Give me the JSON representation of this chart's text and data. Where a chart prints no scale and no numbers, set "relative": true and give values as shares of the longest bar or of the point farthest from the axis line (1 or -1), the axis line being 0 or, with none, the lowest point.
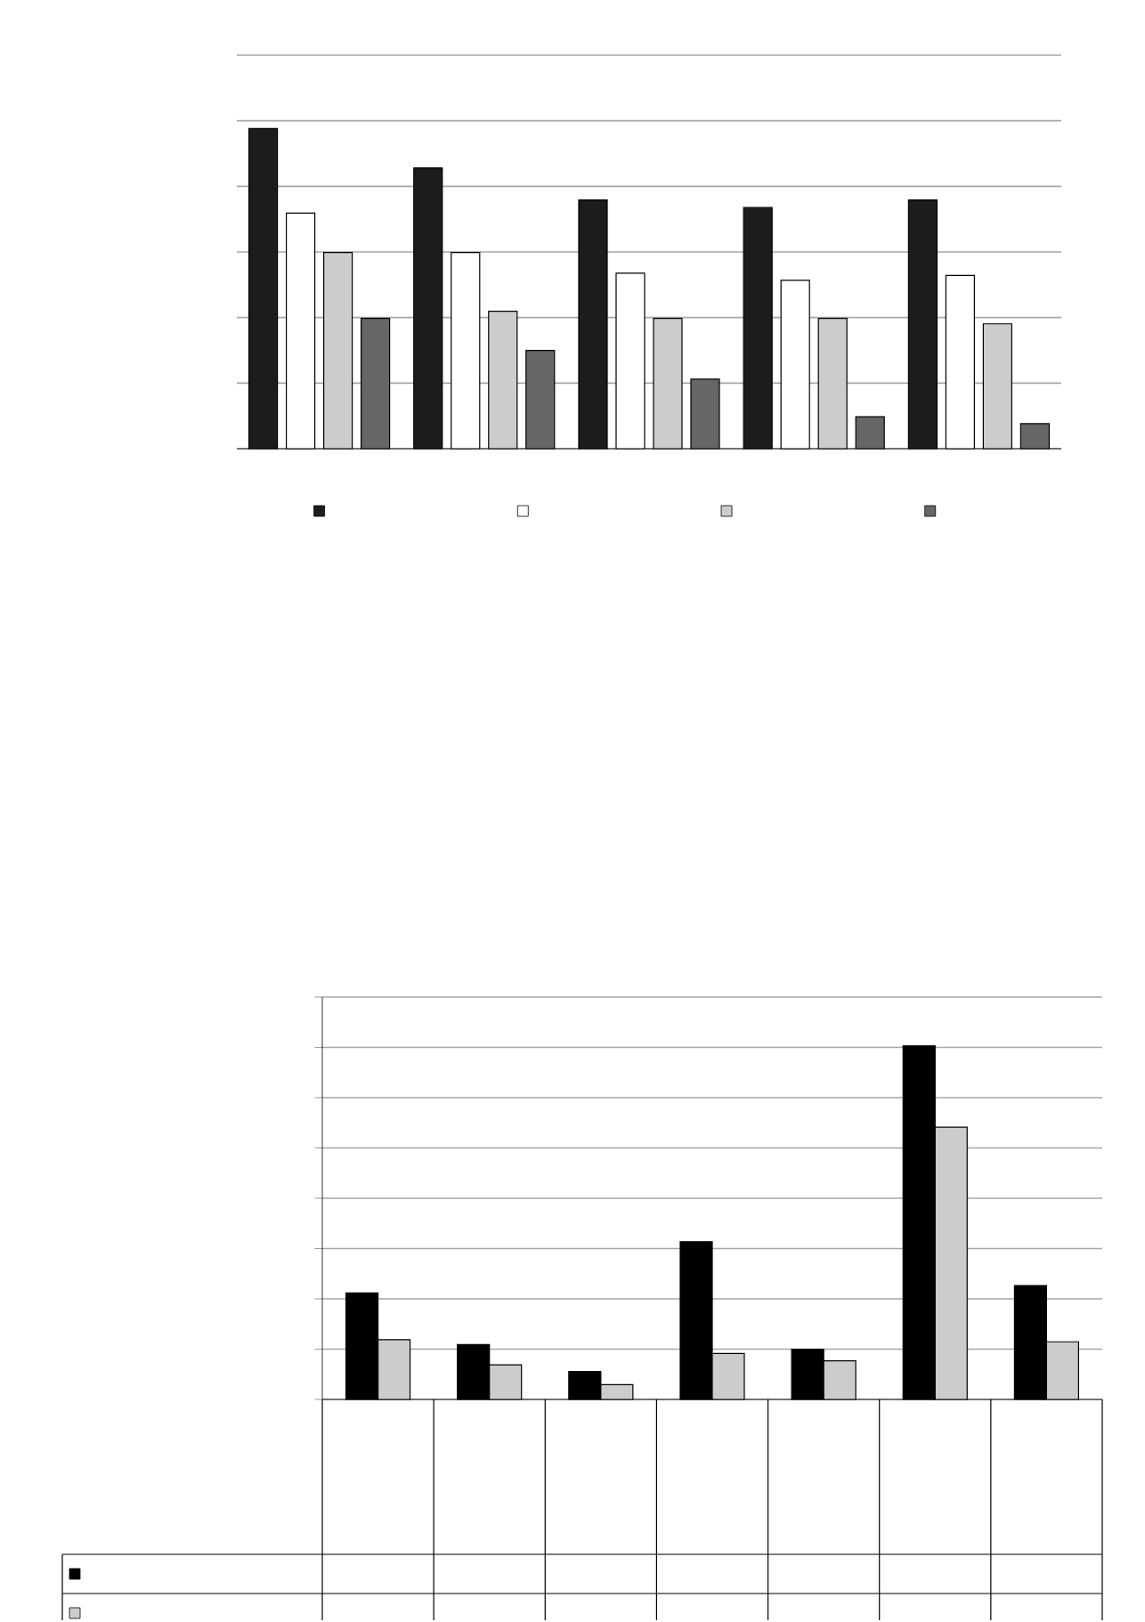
{
  "chart_data": [
    {
      "type": "bar",
      "relative": true,
      "grid": "y",
      "categories": [
        null,
        null,
        null,
        null,
        null
      ],
      "series": [
        {
          "color": "#1c1c1c",
          "values": [
            1,
            0.877,
            0.777,
            0.753,
            0.777
          ]
        },
        {
          "color": "#ffffff",
          "values": [
            0.736,
            0.613,
            0.548,
            0.526,
            0.541
          ]
        },
        {
          "color": "#cccccc",
          "values": [
            0.613,
            0.429,
            0.407,
            0.407,
            0.39
          ]
        },
        {
          "color": "#666666",
          "values": [
            0.407,
            0.307,
            0.217,
            0.1,
            0.078
          ]
        }
      ]
    },
    {
      "type": "bar",
      "relative": true,
      "grid": "y",
      "categories": [
        null,
        null,
        null,
        null,
        null,
        null,
        null
      ],
      "series": [
        {
          "color": "#000000",
          "values": [
            0.301,
            0.155,
            0.079,
            0.446,
            0.142,
            1,
            0.322
          ]
        },
        {
          "color": "#cccccc",
          "values": [
            0.169,
            0.098,
            0.042,
            0.13,
            0.109,
            0.77,
            0.163
          ]
        }
      ]
    }
  ]
}
